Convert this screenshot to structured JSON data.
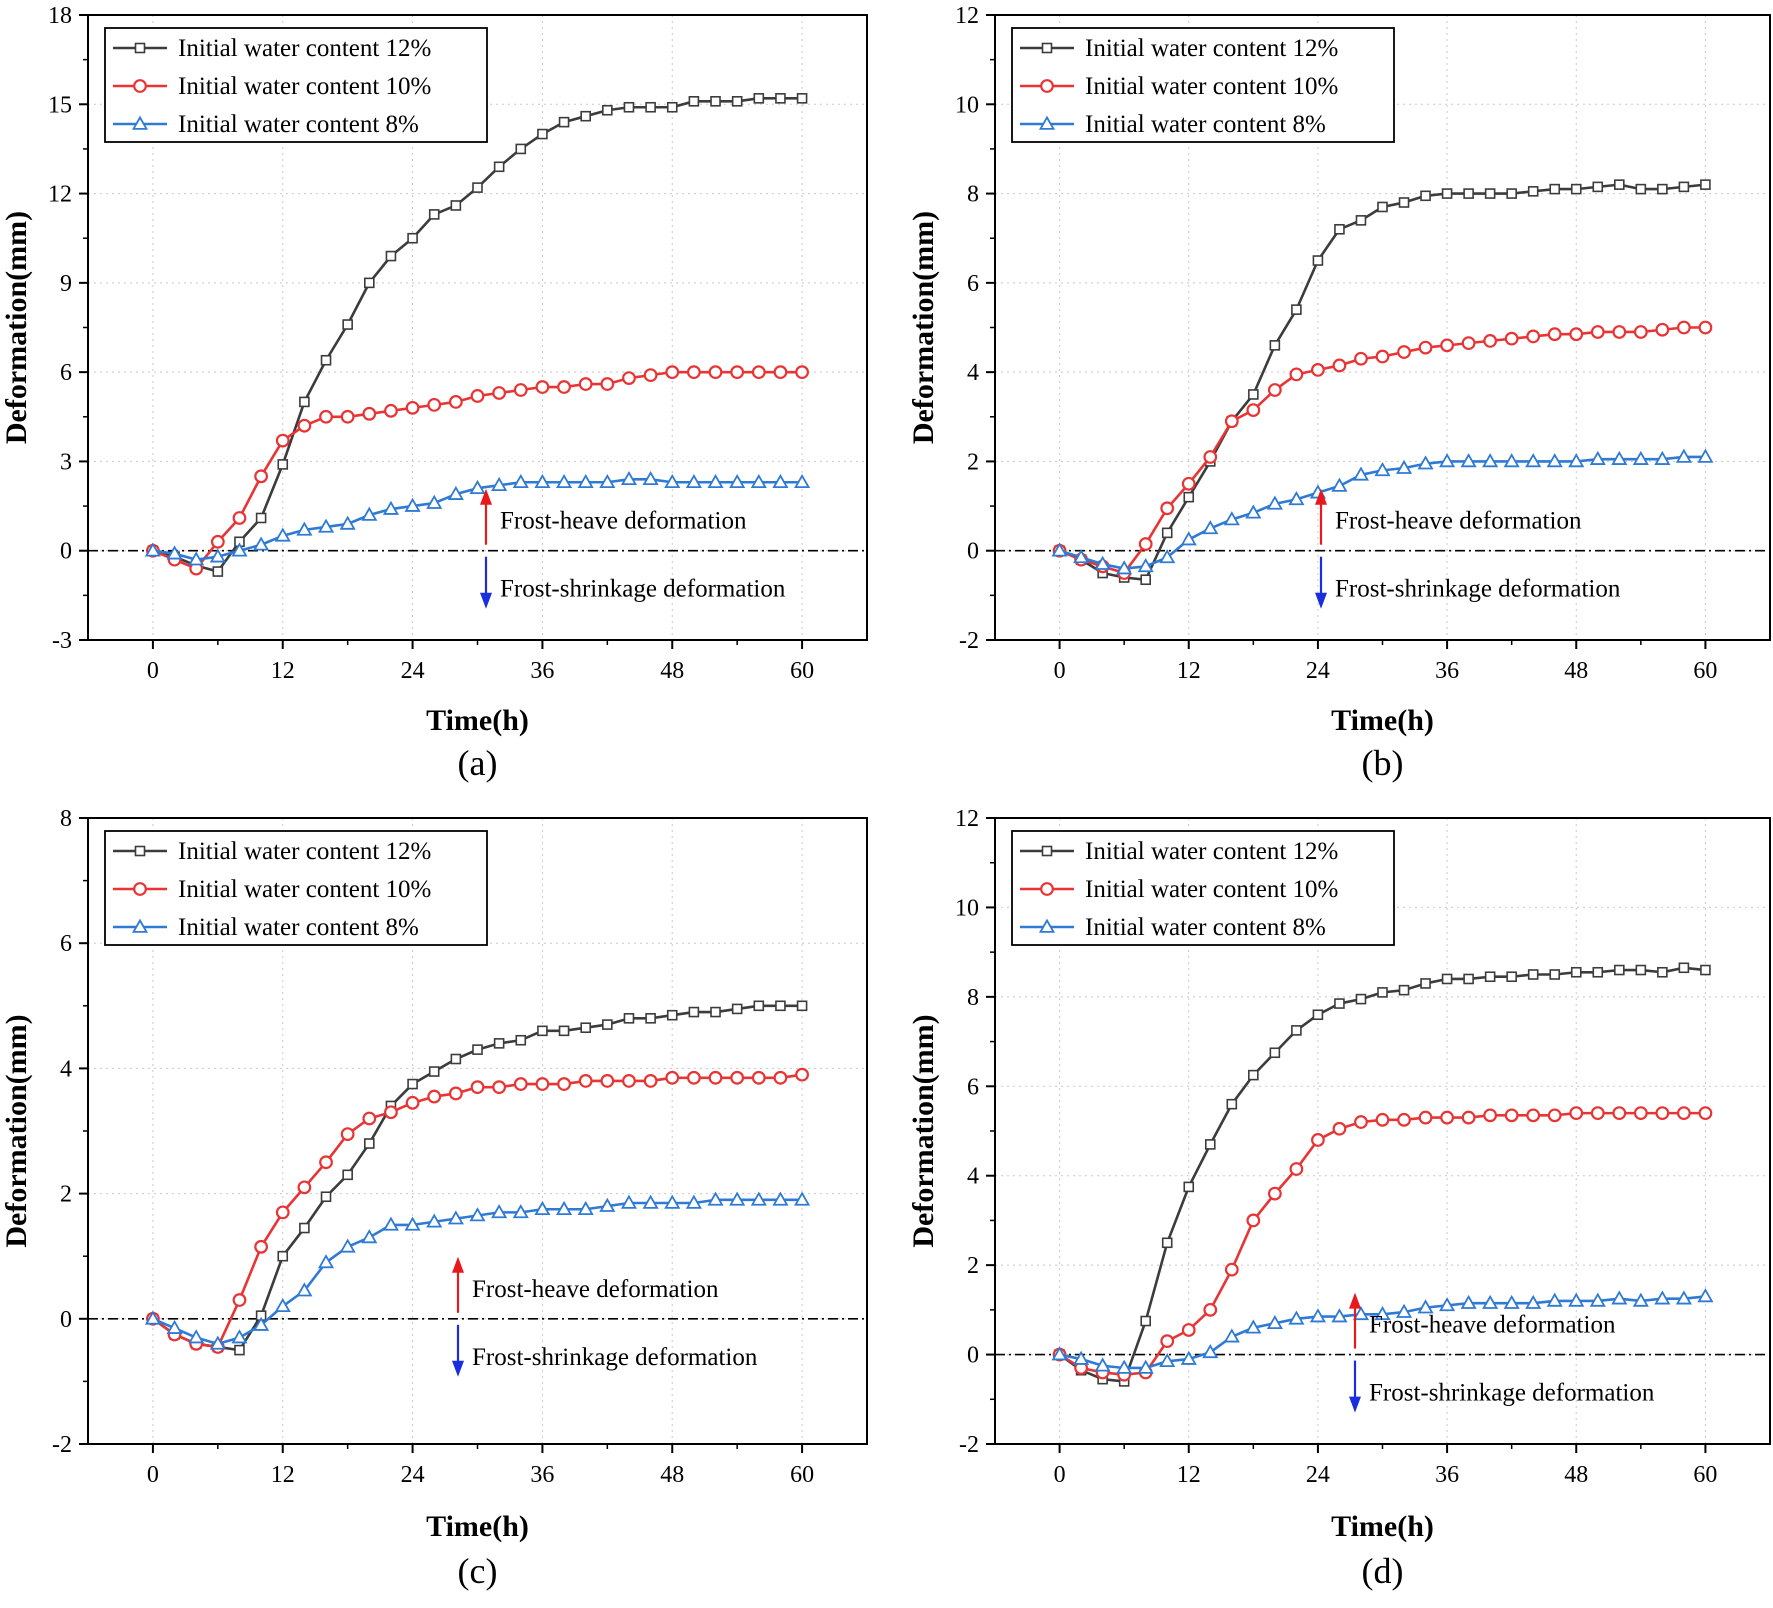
{
  "chart_data": [
    {
      "type": "line",
      "panel_label": "(a)",
      "xlabel": "Time(h)",
      "ylabel": "Deformation(mm)",
      "xlim": [
        -6,
        66
      ],
      "ylim": [
        -3,
        18
      ],
      "xticks": [
        0,
        12,
        24,
        36,
        48,
        60
      ],
      "yticks": [
        -3,
        0,
        3,
        6,
        9,
        12,
        15,
        18
      ],
      "grid": true,
      "legend_position": "top-left",
      "zero_line": true,
      "annotations": {
        "up": "Frost-heave deformation",
        "down": "Frost-shrinkage deformation",
        "position": "right-middle"
      },
      "x": [
        0,
        2,
        4,
        6,
        8,
        10,
        12,
        14,
        16,
        18,
        20,
        22,
        24,
        26,
        28,
        30,
        32,
        34,
        36,
        38,
        40,
        42,
        44,
        46,
        48,
        50,
        52,
        54,
        56,
        58,
        60
      ],
      "series": [
        {
          "name": "Initial water content 12%",
          "color": "#3c3c3c",
          "marker": "square",
          "values": [
            0,
            -0.2,
            -0.5,
            -0.7,
            0.3,
            1.1,
            2.9,
            5.0,
            6.4,
            7.6,
            9.0,
            9.9,
            10.5,
            11.3,
            11.6,
            12.2,
            12.9,
            13.5,
            14.0,
            14.4,
            14.6,
            14.8,
            14.9,
            14.9,
            14.9,
            15.1,
            15.1,
            15.1,
            15.2,
            15.2,
            15.2
          ]
        },
        {
          "name": "Initial water content 10%",
          "color": "#e83434",
          "marker": "circle",
          "values": [
            0,
            -0.3,
            -0.6,
            0.3,
            1.1,
            2.5,
            3.7,
            4.2,
            4.5,
            4.5,
            4.6,
            4.7,
            4.8,
            4.9,
            5.0,
            5.2,
            5.3,
            5.4,
            5.5,
            5.5,
            5.6,
            5.6,
            5.8,
            5.9,
            6.0,
            6.0,
            6.0,
            6.0,
            6.0,
            6.0,
            6.0
          ]
        },
        {
          "name": "Initial water content 8%",
          "color": "#2f7ad4",
          "marker": "triangle",
          "values": [
            0,
            -0.1,
            -0.3,
            -0.2,
            0.0,
            0.2,
            0.5,
            0.7,
            0.8,
            0.9,
            1.2,
            1.4,
            1.5,
            1.6,
            1.9,
            2.1,
            2.2,
            2.3,
            2.3,
            2.3,
            2.3,
            2.3,
            2.4,
            2.4,
            2.3,
            2.3,
            2.3,
            2.3,
            2.3,
            2.3,
            2.3
          ]
        }
      ]
    },
    {
      "type": "line",
      "panel_label": "(b)",
      "xlabel": "Time(h)",
      "ylabel": "Deformation(mm)",
      "xlim": [
        -6,
        66
      ],
      "ylim": [
        -2,
        12
      ],
      "xticks": [
        0,
        12,
        24,
        36,
        48,
        60
      ],
      "yticks": [
        -2,
        0,
        2,
        4,
        6,
        8,
        10,
        12
      ],
      "grid": true,
      "legend_position": "top-left",
      "zero_line": true,
      "annotations": {
        "up": "Frost-heave deformation",
        "down": "Frost-shrinkage deformation",
        "position": "right-middle"
      },
      "x": [
        0,
        2,
        4,
        6,
        8,
        10,
        12,
        14,
        16,
        18,
        20,
        22,
        24,
        26,
        28,
        30,
        32,
        34,
        36,
        38,
        40,
        42,
        44,
        46,
        48,
        50,
        52,
        54,
        56,
        58,
        60
      ],
      "series": [
        {
          "name": "Initial water content 12%",
          "color": "#3c3c3c",
          "marker": "square",
          "values": [
            0,
            -0.2,
            -0.5,
            -0.6,
            -0.65,
            0.4,
            1.2,
            2.0,
            2.9,
            3.5,
            4.6,
            5.4,
            6.5,
            7.2,
            7.4,
            7.7,
            7.8,
            7.95,
            8.0,
            8.0,
            8.0,
            8.0,
            8.05,
            8.1,
            8.1,
            8.15,
            8.2,
            8.1,
            8.1,
            8.15,
            8.2
          ]
        },
        {
          "name": "Initial water content 10%",
          "color": "#e83434",
          "marker": "circle",
          "values": [
            0,
            -0.2,
            -0.35,
            -0.5,
            0.15,
            0.95,
            1.5,
            2.1,
            2.9,
            3.15,
            3.6,
            3.95,
            4.05,
            4.15,
            4.3,
            4.35,
            4.45,
            4.55,
            4.6,
            4.65,
            4.7,
            4.75,
            4.8,
            4.85,
            4.85,
            4.9,
            4.9,
            4.9,
            4.95,
            5.0,
            5.0
          ]
        },
        {
          "name": "Initial water content 8%",
          "color": "#2f7ad4",
          "marker": "triangle",
          "values": [
            0,
            -0.15,
            -0.3,
            -0.4,
            -0.35,
            -0.15,
            0.25,
            0.5,
            0.7,
            0.85,
            1.05,
            1.15,
            1.3,
            1.45,
            1.7,
            1.8,
            1.85,
            1.95,
            2.0,
            2.0,
            2.0,
            2.0,
            2.0,
            2.0,
            2.0,
            2.05,
            2.05,
            2.05,
            2.05,
            2.1,
            2.1
          ]
        }
      ]
    },
    {
      "type": "line",
      "panel_label": "(c)",
      "xlabel": "Time(h)",
      "ylabel": "Deformation(mm)",
      "xlim": [
        -6,
        66
      ],
      "ylim": [
        -2,
        8
      ],
      "xticks": [
        0,
        12,
        24,
        36,
        48,
        60
      ],
      "yticks": [
        -2,
        0,
        2,
        4,
        6,
        8
      ],
      "grid": true,
      "legend_position": "top-left",
      "zero_line": true,
      "annotations": {
        "up": "Frost-heave deformation",
        "down": "Frost-shrinkage deformation",
        "position": "right-middle"
      },
      "x": [
        0,
        2,
        4,
        6,
        8,
        10,
        12,
        14,
        16,
        18,
        20,
        22,
        24,
        26,
        28,
        30,
        32,
        34,
        36,
        38,
        40,
        42,
        44,
        46,
        48,
        50,
        52,
        54,
        56,
        58,
        60
      ],
      "series": [
        {
          "name": "Initial water content 12%",
          "color": "#3c3c3c",
          "marker": "square",
          "values": [
            0,
            -0.25,
            -0.4,
            -0.45,
            -0.5,
            0.05,
            1.0,
            1.45,
            1.95,
            2.3,
            2.8,
            3.4,
            3.75,
            3.95,
            4.15,
            4.3,
            4.4,
            4.45,
            4.6,
            4.6,
            4.65,
            4.7,
            4.8,
            4.8,
            4.85,
            4.9,
            4.9,
            4.95,
            5.0,
            5.0,
            5.0
          ]
        },
        {
          "name": "Initial water content 10%",
          "color": "#e83434",
          "marker": "circle",
          "values": [
            0,
            -0.25,
            -0.4,
            -0.45,
            0.3,
            1.15,
            1.7,
            2.1,
            2.5,
            2.95,
            3.2,
            3.3,
            3.45,
            3.55,
            3.6,
            3.7,
            3.7,
            3.75,
            3.75,
            3.75,
            3.8,
            3.8,
            3.8,
            3.8,
            3.85,
            3.85,
            3.85,
            3.85,
            3.85,
            3.85,
            3.9
          ]
        },
        {
          "name": "Initial water content 8%",
          "color": "#2f7ad4",
          "marker": "triangle",
          "values": [
            0,
            -0.15,
            -0.3,
            -0.4,
            -0.3,
            -0.1,
            0.2,
            0.45,
            0.9,
            1.15,
            1.3,
            1.5,
            1.5,
            1.55,
            1.6,
            1.65,
            1.7,
            1.7,
            1.75,
            1.75,
            1.75,
            1.8,
            1.85,
            1.85,
            1.85,
            1.85,
            1.9,
            1.9,
            1.9,
            1.9,
            1.9
          ]
        }
      ]
    },
    {
      "type": "line",
      "panel_label": "(d)",
      "xlabel": "Time(h)",
      "ylabel": "Deformation(mm)",
      "xlim": [
        -6,
        66
      ],
      "ylim": [
        -2,
        12
      ],
      "xticks": [
        0,
        12,
        24,
        36,
        48,
        60
      ],
      "yticks": [
        -2,
        0,
        2,
        4,
        6,
        8,
        10,
        12
      ],
      "grid": true,
      "legend_position": "top-left",
      "zero_line": true,
      "annotations": {
        "up": "Frost-heave deformation",
        "down": "Frost-shrinkage deformation",
        "position": "right-middle"
      },
      "x": [
        0,
        2,
        4,
        6,
        8,
        10,
        12,
        14,
        16,
        18,
        20,
        22,
        24,
        26,
        28,
        30,
        32,
        34,
        36,
        38,
        40,
        42,
        44,
        46,
        48,
        50,
        52,
        54,
        56,
        58,
        60
      ],
      "series": [
        {
          "name": "Initial water content 12%",
          "color": "#3c3c3c",
          "marker": "square",
          "values": [
            0,
            -0.35,
            -0.55,
            -0.6,
            0.75,
            2.5,
            3.75,
            4.7,
            5.6,
            6.25,
            6.75,
            7.25,
            7.6,
            7.85,
            7.95,
            8.1,
            8.15,
            8.3,
            8.4,
            8.4,
            8.45,
            8.45,
            8.5,
            8.5,
            8.55,
            8.55,
            8.6,
            8.6,
            8.55,
            8.65,
            8.6
          ]
        },
        {
          "name": "Initial water content 10%",
          "color": "#e83434",
          "marker": "circle",
          "values": [
            0,
            -0.3,
            -0.4,
            -0.45,
            -0.4,
            0.3,
            0.55,
            1.0,
            1.9,
            3.0,
            3.6,
            4.15,
            4.8,
            5.05,
            5.2,
            5.25,
            5.25,
            5.3,
            5.3,
            5.3,
            5.35,
            5.35,
            5.35,
            5.35,
            5.4,
            5.4,
            5.4,
            5.4,
            5.4,
            5.4,
            5.4
          ]
        },
        {
          "name": "Initial water content 8%",
          "color": "#2f7ad4",
          "marker": "triangle",
          "values": [
            0,
            -0.1,
            -0.25,
            -0.3,
            -0.3,
            -0.15,
            -0.1,
            0.05,
            0.4,
            0.6,
            0.7,
            0.8,
            0.85,
            0.85,
            0.9,
            0.9,
            0.95,
            1.05,
            1.1,
            1.15,
            1.15,
            1.15,
            1.15,
            1.2,
            1.2,
            1.2,
            1.25,
            1.2,
            1.25,
            1.25,
            1.3
          ]
        }
      ]
    }
  ]
}
